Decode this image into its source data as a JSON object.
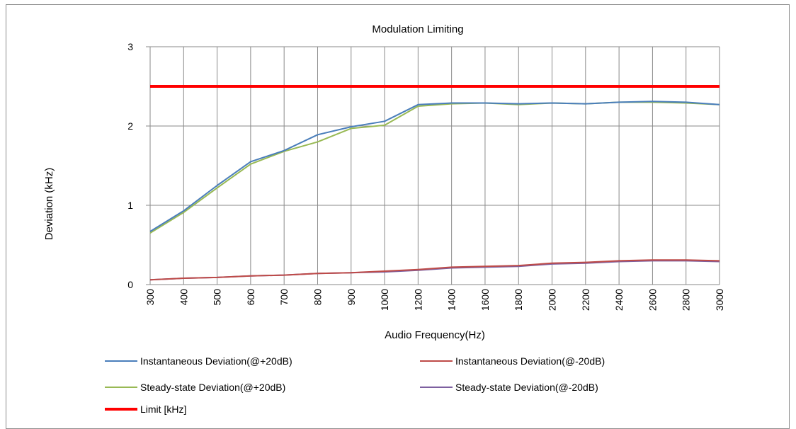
{
  "chart_data": {
    "type": "line",
    "title": "Modulation Limiting",
    "xlabel": "Audio Frequency(Hz)",
    "ylabel": "Deviation (kHz)",
    "categories": [
      "300",
      "400",
      "500",
      "600",
      "700",
      "800",
      "900",
      "1000",
      "1200",
      "1400",
      "1600",
      "1800",
      "2000",
      "2200",
      "2400",
      "2600",
      "2800",
      "3000"
    ],
    "ylim": [
      0,
      3
    ],
    "yticks": [
      "0",
      "1",
      "2",
      "3"
    ],
    "grid": "vertical and horizontal",
    "legend_position": "bottom",
    "series": [
      {
        "name": "Instantaneous Deviation(@+20dB)",
        "color": "#4a7ebb",
        "values": [
          0.67,
          0.93,
          1.25,
          1.55,
          1.69,
          1.89,
          1.99,
          2.06,
          2.27,
          2.29,
          2.29,
          2.28,
          2.29,
          2.28,
          2.3,
          2.31,
          2.3,
          2.27
        ]
      },
      {
        "name": "Instantaneous Deviation(@-20dB)",
        "color": "#be4b48",
        "values": [
          0.06,
          0.08,
          0.09,
          0.11,
          0.12,
          0.14,
          0.15,
          0.17,
          0.19,
          0.22,
          0.23,
          0.24,
          0.27,
          0.28,
          0.3,
          0.31,
          0.31,
          0.3
        ]
      },
      {
        "name": "Steady-state Deviation(@+20dB)",
        "color": "#98b954",
        "values": [
          0.65,
          0.91,
          1.22,
          1.52,
          1.68,
          1.8,
          1.97,
          2.01,
          2.25,
          2.28,
          2.29,
          2.27,
          2.29,
          2.28,
          2.3,
          2.3,
          2.29,
          2.27
        ]
      },
      {
        "name": "Steady-state Deviation(@-20dB)",
        "color": "#7d60a0",
        "values": [
          0.06,
          0.08,
          0.09,
          0.11,
          0.12,
          0.14,
          0.15,
          0.16,
          0.18,
          0.21,
          0.22,
          0.23,
          0.26,
          0.27,
          0.29,
          0.3,
          0.3,
          0.29
        ]
      },
      {
        "name": "Limit [kHz]",
        "color": "#ff0000",
        "values": [
          2.5,
          2.5,
          2.5,
          2.5,
          2.5,
          2.5,
          2.5,
          2.5,
          2.5,
          2.5,
          2.5,
          2.5,
          2.5,
          2.5,
          2.5,
          2.5,
          2.5,
          2.5
        ]
      }
    ]
  }
}
